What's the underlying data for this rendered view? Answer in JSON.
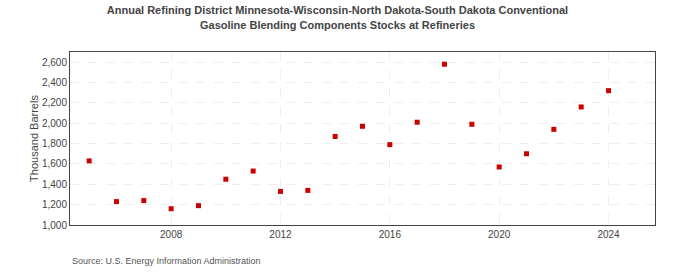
{
  "chart_data": {
    "type": "scatter",
    "title": "Annual Refining District Minnesota-Wisconsin-North Dakota-South Dakota Conventional\nGasoline Blending Components Stocks at Refineries",
    "y_label": "Thousand Barrels",
    "annotations": [
      "Source: U.S. Energy Information Administration"
    ],
    "x": [
      2005,
      2006,
      2007,
      2008,
      2009,
      2010,
      2011,
      2012,
      2013,
      2014,
      2015,
      2016,
      2017,
      2018,
      2019,
      2020,
      2021,
      2022,
      2023,
      2024
    ],
    "values": [
      1630,
      1230,
      1240,
      1160,
      1190,
      1450,
      1530,
      1330,
      1340,
      1870,
      1970,
      1790,
      2010,
      2580,
      1990,
      1570,
      1700,
      1940,
      2160,
      2320
    ],
    "color": "#cc0000",
    "marker": "square",
    "xlim": [
      2004.3,
      2025.7
    ],
    "xticks": [
      2008,
      2012,
      2016,
      2020,
      2024
    ],
    "ylim": [
      1000,
      2700
    ],
    "yticks": [
      {
        "value": 1000,
        "label": "1,000"
      },
      {
        "value": 1200,
        "label": "1,200"
      },
      {
        "value": 1400,
        "label": "1,400"
      },
      {
        "value": 1600,
        "label": "1,600"
      },
      {
        "value": 1800,
        "label": "1,800"
      },
      {
        "value": 2000,
        "label": "2,000"
      },
      {
        "value": 2200,
        "label": "2,200"
      },
      {
        "value": 2400,
        "label": "2,400"
      },
      {
        "value": 2600,
        "label": "2,600"
      }
    ],
    "grid": true
  }
}
